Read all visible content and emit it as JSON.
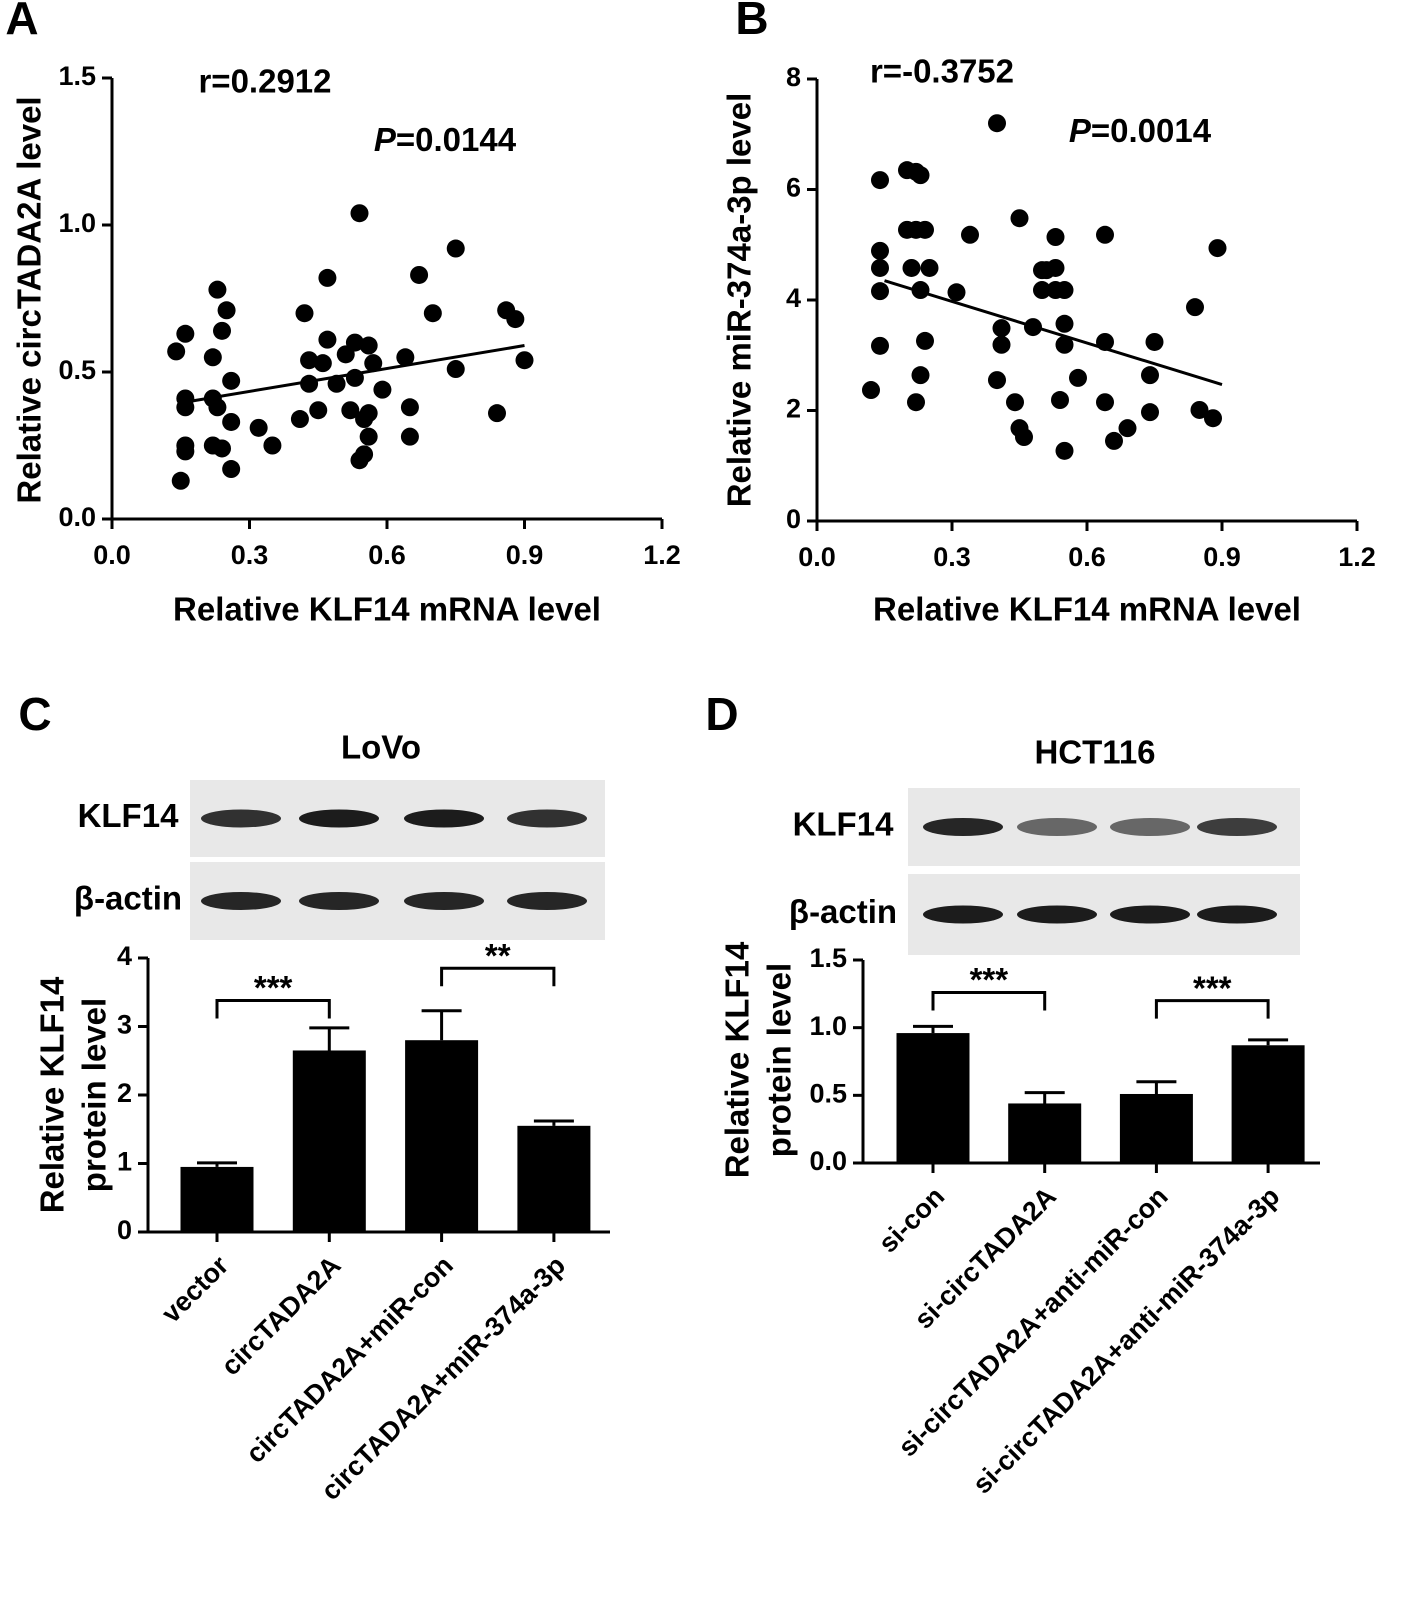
{
  "chart_data": [
    {
      "type": "scatter",
      "panel": "A",
      "xlabel": "Relative KLF14 mRNA level",
      "ylabel": "Relative circTADA2A level",
      "r_text": "r=0.2912",
      "p_symbol": "P",
      "p_text": "=0.0144",
      "color": "#000000",
      "xlim": [
        0,
        1.2
      ],
      "xticks": [
        {
          "value": 0,
          "label": "0.0"
        },
        0.3,
        0.6,
        0.9,
        1.2
      ],
      "ylim": [
        0,
        1.5
      ],
      "yticks": [
        {
          "value": 0,
          "label": "0.0"
        },
        0.5,
        {
          "value": 1,
          "label": "1.0"
        },
        1.5
      ],
      "x": [
        0.14,
        0.16,
        0.16,
        0.16,
        0.16,
        0.16,
        0.15,
        0.22,
        0.23,
        0.25,
        0.24,
        0.22,
        0.22,
        0.24,
        0.26,
        0.26,
        0.23,
        0.26,
        0.32,
        0.35,
        0.42,
        0.41,
        0.43,
        0.43,
        0.45,
        0.46,
        0.47,
        0.47,
        0.49,
        0.51,
        0.53,
        0.53,
        0.54,
        0.52,
        0.54,
        0.55,
        0.56,
        0.56,
        0.56,
        0.57,
        0.59,
        0.64,
        0.65,
        0.65,
        0.67,
        0.7,
        0.75,
        0.75,
        0.86,
        0.88,
        0.84,
        0.9,
        0.55
      ],
      "values": [
        0.57,
        0.63,
        0.41,
        0.38,
        0.25,
        0.23,
        0.13,
        0.55,
        0.78,
        0.71,
        0.64,
        0.41,
        0.25,
        0.24,
        0.17,
        0.47,
        0.38,
        0.33,
        0.31,
        0.25,
        0.7,
        0.34,
        0.46,
        0.54,
        0.37,
        0.53,
        0.61,
        0.82,
        0.46,
        0.56,
        0.48,
        0.6,
        1.04,
        0.37,
        0.2,
        0.34,
        0.59,
        0.36,
        0.28,
        0.53,
        0.44,
        0.55,
        0.38,
        0.28,
        0.83,
        0.7,
        0.51,
        0.92,
        0.71,
        0.68,
        0.36,
        0.54,
        0.22
      ],
      "fit": {
        "x": [
          0.15,
          0.9
        ],
        "values": [
          0.395,
          0.59
        ]
      }
    },
    {
      "type": "scatter",
      "panel": "B",
      "xlabel": "Relative KLF14 mRNA level",
      "ylabel": "Relative miR-374a-3p level",
      "r_text": "r=-0.3752",
      "p_symbol": "P",
      "p_text": "=0.0014",
      "color": "#000000",
      "xlim": [
        0,
        1.2
      ],
      "xticks": [
        {
          "value": 0,
          "label": "0.0"
        },
        0.3,
        0.6,
        0.9,
        1.2
      ],
      "ylim": [
        0,
        8
      ],
      "yticks": [
        0,
        2,
        4,
        6,
        8
      ],
      "x": [
        0.14,
        0.14,
        0.14,
        0.14,
        0.14,
        0.12,
        0.2,
        0.22,
        0.23,
        0.2,
        0.22,
        0.24,
        0.25,
        0.21,
        0.23,
        0.24,
        0.23,
        0.22,
        0.31,
        0.34,
        0.4,
        0.41,
        0.41,
        0.45,
        0.44,
        0.45,
        0.46,
        0.4,
        0.48,
        0.5,
        0.51,
        0.53,
        0.53,
        0.5,
        0.53,
        0.55,
        0.55,
        0.55,
        0.54,
        0.55,
        0.58,
        0.64,
        0.64,
        0.64,
        0.66,
        0.69,
        0.75,
        0.74,
        0.74,
        0.84,
        0.85,
        0.88,
        0.89
      ],
      "values": [
        6.17,
        4.89,
        4.58,
        4.16,
        3.17,
        2.37,
        6.35,
        6.32,
        6.26,
        5.27,
        5.27,
        5.27,
        4.58,
        4.58,
        4.18,
        3.26,
        2.64,
        2.15,
        4.14,
        5.18,
        7.2,
        3.49,
        3.19,
        5.48,
        2.15,
        1.68,
        1.52,
        2.55,
        3.51,
        4.54,
        4.54,
        5.14,
        4.58,
        4.18,
        4.18,
        4.18,
        3.57,
        3.19,
        2.19,
        1.27,
        2.59,
        5.18,
        3.24,
        2.15,
        1.45,
        1.68,
        3.24,
        1.97,
        2.64,
        3.87,
        2.01,
        1.86,
        4.94
      ],
      "fit": {
        "x": [
          0.15,
          0.9
        ],
        "values": [
          4.35,
          2.47
        ]
      }
    },
    {
      "type": "bar",
      "panel": "C",
      "blot_title": "LoVo",
      "blot_rows": [
        "KLF14",
        "β-actin"
      ],
      "ylabel": [
        "Relative KLF14",
        "protein level"
      ],
      "color": "#000000",
      "categories": [
        "vector",
        "circTADA2A",
        "circTADA2A+miR-con",
        "circTADA2A+miR-374a-3p"
      ],
      "values": [
        0.95,
        2.65,
        2.8,
        1.55
      ],
      "errors": [
        0.06,
        0.33,
        0.43,
        0.07
      ],
      "ylim": [
        0,
        4
      ],
      "yticks": [
        0,
        1,
        2,
        3,
        4
      ],
      "significance": [
        {
          "groups": [
            0,
            1
          ],
          "y": 3.38,
          "label": "***"
        },
        {
          "groups": [
            2,
            3
          ],
          "y": 3.85,
          "label": "**"
        }
      ]
    },
    {
      "type": "bar",
      "panel": "D",
      "blot_title": "HCT116",
      "blot_rows": [
        "KLF14",
        "β-actin"
      ],
      "ylabel": [
        "Relative KLF14",
        "protein level"
      ],
      "color": "#000000",
      "categories": [
        "si-con",
        "si-circTADA2A",
        "si-circTADA2A+anti-miR-con",
        "si-circTADA2A+anti-miR-374a-3p"
      ],
      "values": [
        0.96,
        0.44,
        0.51,
        0.87
      ],
      "errors": [
        0.05,
        0.08,
        0.09,
        0.04
      ],
      "ylim": [
        0,
        1.5
      ],
      "yticks": [
        {
          "value": 0,
          "label": "0.0"
        },
        0.5,
        {
          "value": 1,
          "label": "1.0"
        },
        1.5
      ],
      "significance": [
        {
          "groups": [
            0,
            1
          ],
          "y": 1.26,
          "label": "***"
        },
        {
          "groups": [
            2,
            3
          ],
          "y": 1.2,
          "label": "***"
        }
      ]
    }
  ]
}
